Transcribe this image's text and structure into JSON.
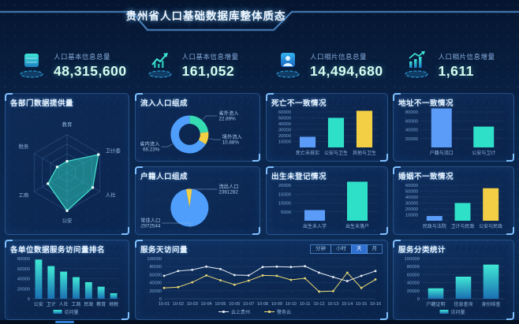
{
  "header": {
    "title": "贵州省人口基础数据库整体质态"
  },
  "colors": {
    "teal": "#2fe0c8",
    "blue": "#5b9cf8",
    "yellow": "#f2cf45",
    "panel_border": "#4884c8",
    "axis_text": "#7ba6d6"
  },
  "kpis": [
    {
      "icon": "database-icon",
      "label": "人口基本信息总量",
      "value": "48,315,600"
    },
    {
      "icon": "trend-line-icon",
      "label": "人口基本信息增量",
      "value": "161,052"
    },
    {
      "icon": "photo-person-icon",
      "label": "人口相片信息总量",
      "value": "14,494,680"
    },
    {
      "icon": "trend-bars-icon",
      "label": "人口相片信息增量",
      "value": "1,611"
    }
  ],
  "panels": {
    "radar": {
      "title": "各部门数据提供量"
    },
    "inflow": {
      "title": "流入人口组成"
    },
    "hukou": {
      "title": "户籍人口组成"
    },
    "death": {
      "title": "死亡不一致情况"
    },
    "birth": {
      "title": "出生未登记情况"
    },
    "address": {
      "title": "地址不一致情况"
    },
    "marriage": {
      "title": "婚姻不一致情况"
    },
    "rank": {
      "title": "各单位数据服务访问量排名"
    },
    "visits": {
      "title": "服务天访问量"
    },
    "service": {
      "title": "服务分类统计"
    }
  },
  "chart_data": [
    {
      "id": "radar-depts",
      "type": "radar",
      "title": "各部门数据提供量",
      "categories": [
        "教育",
        "卫计委",
        "人社",
        "公安",
        "工商",
        "税务"
      ],
      "values": [
        0.3,
        0.95,
        0.78,
        1.0,
        0.58,
        0.3
      ],
      "max": 1,
      "grid_levels": 4
    },
    {
      "id": "donut-inflow",
      "type": "donut",
      "title": "流入人口组成",
      "inner": true,
      "start_angle": -90,
      "slices": [
        {
          "label": "省外流入",
          "pct": 22.89,
          "display": "22.89%",
          "color": "#35dcb2",
          "label_side": "right"
        },
        {
          "label": "境外流入",
          "pct": 10.88,
          "display": "10.88%",
          "color": "#f2cf45",
          "label_side": "right"
        },
        {
          "label": "省内流入",
          "pct": 66.23,
          "display": "66.23%",
          "color": "#4f9efc",
          "label_side": "left"
        }
      ]
    },
    {
      "id": "pie-hukou",
      "type": "donut",
      "title": "户籍人口组成",
      "inner": false,
      "start_angle": -101,
      "slices": [
        {
          "label": "流出人口",
          "pct": 5.2,
          "display": "2361282",
          "color": "#f2cf45",
          "label_side": "right"
        },
        {
          "label": "常住人口",
          "pct": 94.8,
          "display": "42972544",
          "color": "#4f9efc",
          "label_side": "left"
        }
      ]
    },
    {
      "id": "bar-death",
      "type": "bar",
      "title": "死亡不一致情况",
      "categories": [
        "死亡未核实",
        "公安与卫生",
        "其他与卫生"
      ],
      "values": [
        18000,
        50000,
        62000
      ],
      "colors": [
        "#5b9cf8",
        "#2fe0c8",
        "#f2cf45"
      ],
      "ymax": 60000,
      "ystep": 10000,
      "show_zero": false
    },
    {
      "id": "bar-birth",
      "type": "bar",
      "title": "出生未登记情况",
      "categories": [
        "出生未入学",
        "出生未落户"
      ],
      "values": [
        6000,
        22000
      ],
      "colors": [
        "#5b9cf8",
        "#2fe0c8"
      ],
      "ymax": 20000,
      "ystep": 5000,
      "show_zero": false
    },
    {
      "id": "bar-addr",
      "type": "bar",
      "title": "地址不一致情况",
      "categories": [
        "户籍与流口",
        "公安与卫计"
      ],
      "values": [
        88000,
        47000
      ],
      "colors": [
        "#5b9cf8",
        "#2fe0c8"
      ],
      "ymax": 80000,
      "ystep": 20000,
      "show_zero": false
    },
    {
      "id": "bar-marriage",
      "type": "bar",
      "title": "婚姻不一致情况",
      "categories": [
        "民政与法院",
        "卫计与民政",
        "公安与民政"
      ],
      "values": [
        8000,
        30000,
        55000
      ],
      "colors": [
        "#5b9cf8",
        "#2fe0c8",
        "#f2cf45"
      ],
      "ymax": 60000,
      "ystep": 10000,
      "show_zero": false
    },
    {
      "id": "bar-rank",
      "type": "bar",
      "title": "各单位数据服务访问量排名",
      "categories": [
        "公安",
        "卫计",
        "人社",
        "工商",
        "民政",
        "教育",
        "地税"
      ],
      "values": [
        78000,
        65000,
        54000,
        43000,
        33000,
        24000,
        11000
      ],
      "gradient": true,
      "ymax": 80000,
      "ystep": 20000,
      "show_zero": true,
      "legend": "访问量"
    },
    {
      "id": "line-visits",
      "type": "line",
      "title": "服务天访问量",
      "tabs": [
        "分钟",
        "小时",
        "天",
        "月"
      ],
      "active_tab": "天",
      "x": [
        "10-01",
        "10-02",
        "10-03",
        "10-04",
        "10-05",
        "10-06",
        "10-07",
        "10-08",
        "10-09",
        "10-10",
        "10-11",
        "10-12",
        "10-13",
        "10-14",
        "10-15",
        "10-16"
      ],
      "series": [
        {
          "name": "云上贵州",
          "color": "#e6edf5",
          "values": [
            57000,
            69000,
            72000,
            80000,
            74000,
            59000,
            58000,
            79000,
            80000,
            79000,
            81000,
            65000,
            54000,
            44000,
            57000,
            69000
          ]
        },
        {
          "name": "警务云",
          "color": "#ead974",
          "values": [
            27000,
            29000,
            41000,
            58000,
            46000,
            35000,
            45000,
            58000,
            57000,
            47000,
            51000,
            18000,
            19000,
            65000,
            27000,
            48000
          ]
        }
      ],
      "ymax": 100000,
      "ystep": 20000,
      "show_zero": true
    },
    {
      "id": "bar-svc",
      "type": "bar",
      "title": "服务分类统计",
      "categories": [
        "户籍证明",
        "信息查询",
        "身份核查"
      ],
      "values": [
        26000,
        55000,
        85000
      ],
      "gradient": true,
      "ymax": 100000,
      "ystep": 20000,
      "show_zero": true,
      "legend": "访问量"
    }
  ]
}
